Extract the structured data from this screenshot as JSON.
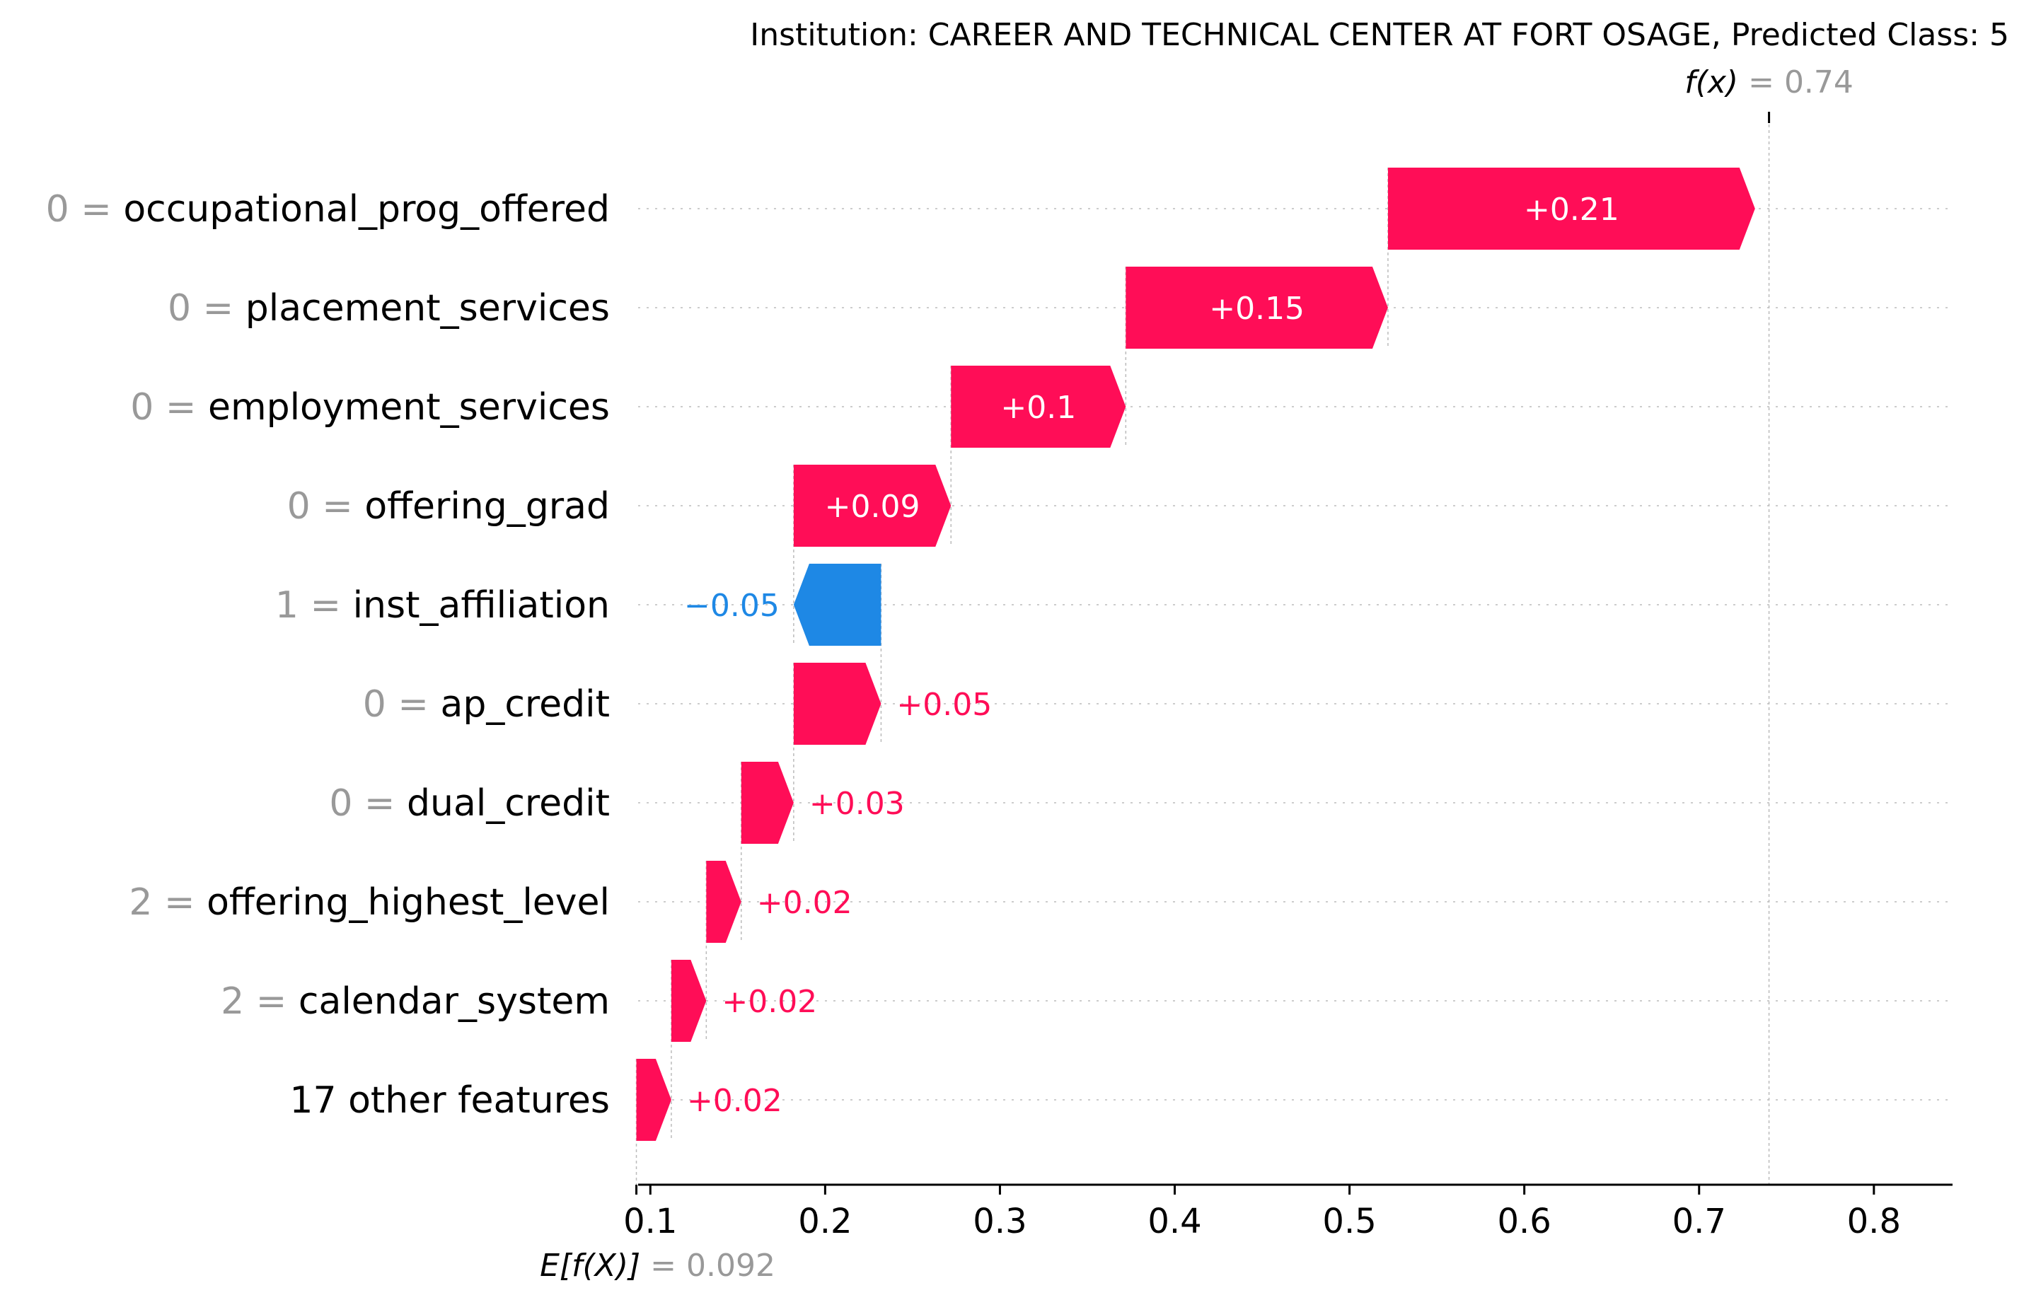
{
  "chart_data": {
    "type": "waterfall",
    "title": "Institution: CAREER AND TECHNICAL CENTER AT FORT OSAGE, Predicted Class: 5",
    "base_value": 0.092,
    "base_value_label": "0.092",
    "base_value_name": "E[f(X)]",
    "output_value": 0.74,
    "output_value_label": "0.74",
    "output_value_name": "f(x)",
    "equals_sign": "=",
    "xlim": [
      0.093,
      0.845
    ],
    "x_ticks": [
      0.1,
      0.2,
      0.3,
      0.4,
      0.5,
      0.6,
      0.7,
      0.8
    ],
    "x_tick_labels": [
      "0.1",
      "0.2",
      "0.3",
      "0.4",
      "0.5",
      "0.6",
      "0.7",
      "0.8"
    ],
    "colors": {
      "positive": "#ff0d57",
      "negative": "#1e88e5",
      "gray": "#999999"
    },
    "features": [
      {
        "value": "0",
        "name": "occupational_prog_offered",
        "shap": 0.21,
        "label": "+0.21"
      },
      {
        "value": "0",
        "name": "placement_services",
        "shap": 0.15,
        "label": "+0.15"
      },
      {
        "value": "0",
        "name": "employment_services",
        "shap": 0.1,
        "label": "+0.1"
      },
      {
        "value": "0",
        "name": "offering_grad",
        "shap": 0.09,
        "label": "+0.09"
      },
      {
        "value": "1",
        "name": "inst_affiliation",
        "shap": -0.05,
        "label": "−0.05"
      },
      {
        "value": "0",
        "name": "ap_credit",
        "shap": 0.05,
        "label": "+0.05"
      },
      {
        "value": "0",
        "name": "dual_credit",
        "shap": 0.03,
        "label": "+0.03"
      },
      {
        "value": "2",
        "name": "offering_highest_level",
        "shap": 0.02,
        "label": "+0.02"
      },
      {
        "value": "2",
        "name": "calendar_system",
        "shap": 0.02,
        "label": "+0.02"
      },
      {
        "value": "",
        "name": "17 other features",
        "shap": 0.02,
        "label": "+0.02"
      }
    ]
  }
}
